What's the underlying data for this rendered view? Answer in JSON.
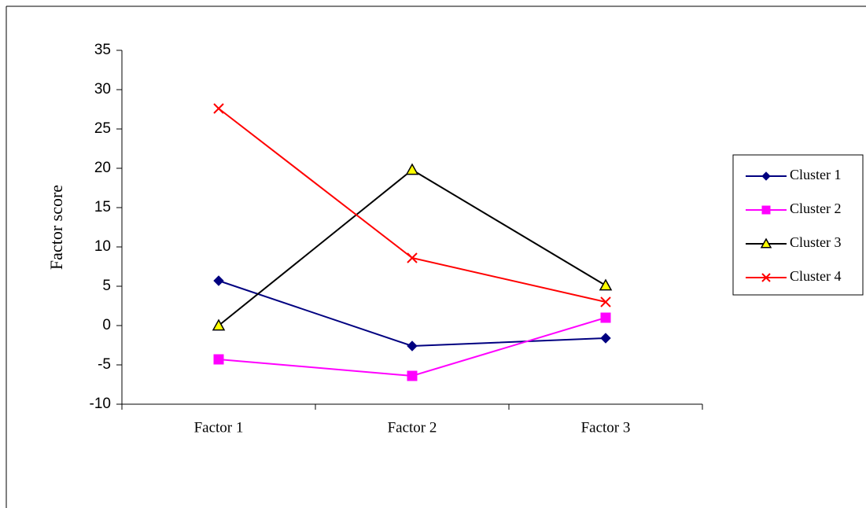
{
  "chart_data": {
    "type": "line",
    "title": "",
    "xlabel": "",
    "ylabel": "Factor score",
    "categories": [
      "Factor 1",
      "Factor 2",
      "Factor 3"
    ],
    "ylim": [
      -10,
      35
    ],
    "yticks": [
      -10,
      -5,
      0,
      5,
      10,
      15,
      20,
      25,
      30,
      35
    ],
    "grid": false,
    "legend_position": "right",
    "series": [
      {
        "name": "Cluster 1",
        "values": [
          5.7,
          -2.6,
          -1.6
        ],
        "color": "#000080",
        "marker": "diamond"
      },
      {
        "name": "Cluster 2",
        "values": [
          -4.3,
          -6.4,
          1.0
        ],
        "color": "#FF00FF",
        "marker": "square"
      },
      {
        "name": "Cluster 3",
        "values": [
          0.0,
          19.8,
          5.1
        ],
        "color": "#000000",
        "marker": "triangle",
        "marker_fill": "#FFFF00"
      },
      {
        "name": "Cluster 4",
        "values": [
          27.6,
          8.6,
          3.0
        ],
        "color": "#FF0000",
        "marker": "x"
      }
    ]
  }
}
